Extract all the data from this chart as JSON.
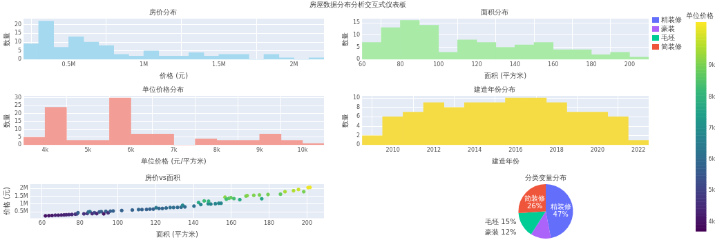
{
  "chart_data": [
    {
      "type": "histogram",
      "title": "房价分布",
      "annotations": [
        "房屋数据分布分析交互式仪表板"
      ],
      "xlabel": "价格 (元)",
      "ylabel": "数量",
      "color": "#a5d9ef",
      "bins": [
        200000,
        300000,
        400000,
        500000,
        600000,
        700000,
        800000,
        900000,
        1000000,
        1100000,
        1200000,
        1300000,
        1400000,
        1500000,
        1600000,
        1700000,
        1800000,
        1900000,
        2000000,
        2100000,
        2200000
      ],
      "values": [
        9,
        22,
        7,
        13,
        10,
        8,
        3,
        2,
        5,
        2,
        2,
        4,
        2,
        3,
        3,
        0,
        3,
        1,
        0,
        1
      ],
      "xlim": [
        200000,
        2200000
      ],
      "xticks": [
        {
          "value": 500000,
          "label": "0.5M"
        },
        {
          "value": 1000000,
          "label": "1M"
        },
        {
          "value": 1500000,
          "label": "1.5M"
        },
        {
          "value": 2000000,
          "label": "2M"
        }
      ],
      "ylim": [
        0,
        23.4
      ],
      "yticks": [
        0,
        5,
        10,
        15,
        20
      ],
      "grid": true
    },
    {
      "type": "histogram",
      "title": "面积分布",
      "xlabel": "面积 (平方米)",
      "ylabel": "数量",
      "color": "#a8eaa6",
      "bins": [
        60,
        70,
        80,
        90,
        100,
        110,
        120,
        130,
        140,
        150,
        160,
        170,
        180,
        190,
        200,
        210
      ],
      "values": [
        7,
        13,
        16,
        14,
        3,
        8,
        7,
        5,
        6,
        7,
        4,
        4,
        2,
        3,
        1
      ],
      "xlim": [
        60,
        210
      ],
      "xticks": [
        60,
        80,
        100,
        120,
        140,
        160,
        180,
        200
      ],
      "ylim": [
        0,
        16.7
      ],
      "yticks": [
        0,
        5,
        10,
        15
      ],
      "grid": true
    },
    {
      "type": "histogram",
      "title": "单位价格分布",
      "xlabel": "单位价格 (元/平方米)",
      "ylabel": "数量",
      "color": "#f29e96",
      "bins": [
        3500,
        4000,
        4500,
        5000,
        5500,
        6000,
        6500,
        7000,
        7500,
        8000,
        8500,
        9000,
        9500,
        10000,
        10500
      ],
      "values": [
        5,
        24,
        3,
        3,
        30,
        7,
        7,
        0,
        4,
        3,
        3,
        7,
        3,
        1
      ],
      "xlim": [
        3500,
        10500
      ],
      "xticks": [
        {
          "value": 4000,
          "label": "4k"
        },
        {
          "value": 5000,
          "label": "5k"
        },
        {
          "value": 6000,
          "label": "6k"
        },
        {
          "value": 7000,
          "label": "7k"
        },
        {
          "value": 8000,
          "label": "8k"
        },
        {
          "value": 9000,
          "label": "9k"
        },
        {
          "value": 10000,
          "label": "10k"
        }
      ],
      "ylim": [
        0,
        31.3
      ],
      "yticks": [
        0,
        5,
        10,
        15,
        20,
        25,
        30
      ],
      "grid": true
    },
    {
      "type": "histogram",
      "title": "建造年份分布",
      "xlabel": "建造年份",
      "ylabel": "数量",
      "color": "#f5dc45",
      "bins": [
        2008.5,
        2009.5,
        2010.5,
        2011.5,
        2012.5,
        2013.5,
        2014.5,
        2015.5,
        2016.5,
        2017.5,
        2018.5,
        2019.5,
        2020.5,
        2021.5,
        2022.5
      ],
      "values": [
        2,
        6,
        7,
        9,
        8,
        9,
        9,
        10,
        10,
        9,
        7,
        7,
        6,
        1
      ],
      "xlim": [
        2008.5,
        2022.5
      ],
      "xticks": [
        2010,
        2012,
        2014,
        2016,
        2018,
        2020,
        2022
      ],
      "ylim": [
        0,
        10.45
      ],
      "yticks": [
        0,
        2,
        4,
        6,
        8,
        10
      ],
      "grid": true
    },
    {
      "type": "scatter",
      "title": "房价vs面积",
      "xlabel": "面积 (平方米)",
      "ylabel": "价格 (元)",
      "marker": "circle",
      "clabel": "单位价格",
      "x": [
        61.8,
        63.6,
        65.3,
        67,
        68.6,
        70.2,
        71.6,
        72.8,
        74.2,
        75.8,
        77.6,
        78.5,
        79,
        82.1,
        83.9,
        84.5,
        85.3,
        86.5,
        87.7,
        88.9,
        90.3,
        91.3,
        92.6,
        93.7,
        94.9,
        96.1,
        97.6,
        102.1,
        107.7,
        111,
        112.8,
        115.2,
        117,
        118.8,
        120.3,
        121.8,
        123.6,
        125.6,
        127.7,
        129.5,
        131.6,
        133.5,
        134.3,
        135.5,
        140.3,
        142.7,
        143.9,
        145.7,
        147.8,
        148,
        149.2,
        151.6,
        153.4,
        154.6,
        156.7,
        157.4,
        158.8,
        159.8,
        161.4,
        164.5,
        167.8,
        168.4,
        171.9,
        174.9,
        176.1,
        179.4,
        186,
        188.4,
        192.9,
        195.5,
        198.3,
        200.6,
        201.6
      ],
      "values": [
        250000,
        260000,
        270000,
        290000,
        290000,
        300000,
        310000,
        320000,
        330000,
        340000,
        360000,
        380000,
        450000,
        380000,
        400000,
        500000,
        520000,
        390000,
        450000,
        390000,
        500000,
        520000,
        380000,
        540000,
        440000,
        550000,
        560000,
        590000,
        620000,
        650000,
        650000,
        660000,
        680000,
        680000,
        770000,
        720000,
        720000,
        750000,
        780000,
        780000,
        790000,
        800000,
        920000,
        820000,
        870000,
        1100000,
        970000,
        1200000,
        1020000,
        1180000,
        1000000,
        1020000,
        1050000,
        1050000,
        1440000,
        1310000,
        1370000,
        1410000,
        1350000,
        1280000,
        1510000,
        1540000,
        1560000,
        1580000,
        1340000,
        1610000,
        1630000,
        1790000,
        1850000,
        1930000,
        1790000,
        2050000,
        2060000
      ],
      "cvalues": [
        4050,
        4090,
        4130,
        4330,
        4230,
        4270,
        4330,
        4400,
        4450,
        4490,
        4640,
        4840,
        5700,
        4630,
        4770,
        5920,
        6100,
        4510,
        5130,
        4390,
        5540,
        5700,
        4100,
        5760,
        4640,
        5720,
        5740,
        5780,
        5760,
        5860,
        5760,
        5730,
        5810,
        5720,
        6400,
        5910,
        5830,
        5970,
        6110,
        6020,
        6000,
        5990,
        6850,
        6050,
        6200,
        7710,
        6740,
        8240,
        6900,
        7970,
        6700,
        6730,
        6840,
        6790,
        9190,
        8320,
        8630,
        8820,
        8360,
        7780,
        9000,
        9140,
        9080,
        9030,
        7610,
        8970,
        8760,
        9500,
        9590,
        9870,
        9030,
        10220,
        10220
      ],
      "xlim": [
        53.7,
        209
      ],
      "xticks": [
        60,
        80,
        100,
        120,
        140,
        160,
        180,
        200
      ],
      "ylim": [
        100000,
        2270000
      ],
      "yticks": [
        {
          "value": 500000,
          "label": "0.5M"
        },
        {
          "value": 1000000,
          "label": "1M"
        },
        {
          "value": 1500000,
          "label": "1.5M"
        },
        {
          "value": 2000000,
          "label": "2M"
        }
      ],
      "clim": [
        3700,
        10400
      ],
      "cticks": [
        {
          "value": 4000,
          "label": "4k"
        },
        {
          "value": 5000,
          "label": "5k"
        },
        {
          "value": 6000,
          "label": "6k"
        },
        {
          "value": 7000,
          "label": "7k"
        },
        {
          "value": 8000,
          "label": "8k"
        },
        {
          "value": 9000,
          "label": "9k"
        }
      ],
      "grid": true
    },
    {
      "type": "pie",
      "title": "分类变量分布",
      "categories": [
        "精装修",
        "豪装",
        "毛坯",
        "简装修"
      ],
      "values": [
        47,
        12,
        15,
        26
      ],
      "value_labels": [
        "47%",
        "12%",
        "15%",
        "26%"
      ],
      "colors": [
        "#636efa",
        "#ab63fa",
        "#00cc96",
        "#ef553b"
      ],
      "legend": "top right"
    }
  ]
}
